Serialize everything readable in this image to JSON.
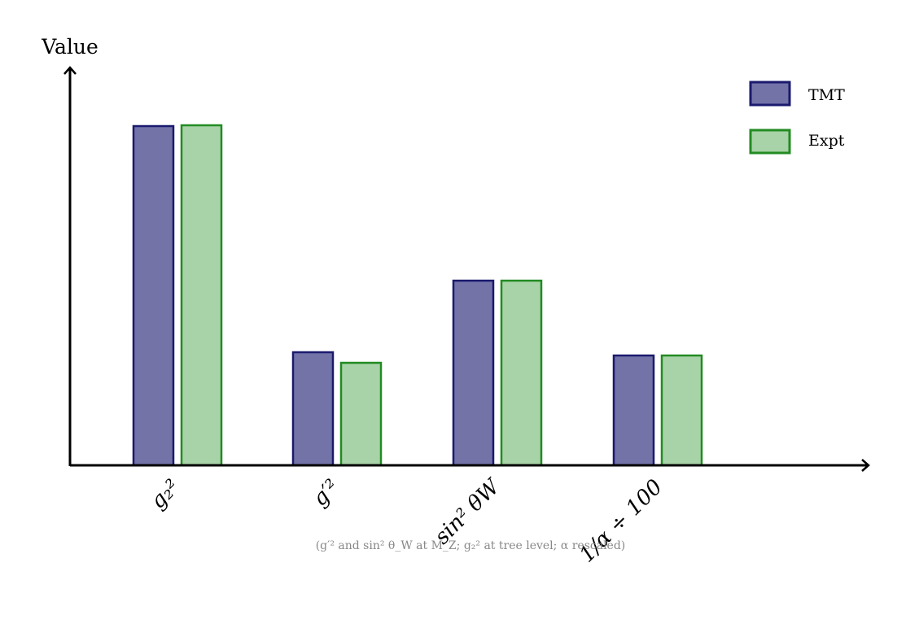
{
  "chart_data": {
    "type": "bar",
    "title": "",
    "xlabel": "",
    "ylabel": "Value",
    "categories": [
      "g_2^2",
      "g'^2",
      "sin^2 θ_W",
      "1/α ÷ 100"
    ],
    "category_display": [
      "g₂²",
      "g′²",
      "sin² θW",
      "1/α ÷ 100"
    ],
    "series": [
      {
        "name": "TMT",
        "values": [
          0.417,
          0.139,
          0.227,
          0.135
        ],
        "fill": "#7373a8",
        "stroke": "#1a1a6e"
      },
      {
        "name": "Expt",
        "values": [
          0.418,
          0.126,
          0.227,
          0.135
        ],
        "fill": "#a8d3a8",
        "stroke": "#228b22"
      }
    ],
    "ylim": [
      0,
      0.49
    ],
    "grid": false,
    "y_ticks": false,
    "legend_position": "top-right",
    "annotation": "(g′² and sin² θW at MZ; g₂² at tree level; α rescaled)"
  },
  "axis": {
    "ylabel": "Value"
  },
  "legend": [
    {
      "label": "TMT"
    },
    {
      "label": "Expt"
    }
  ],
  "note": "(g′² and sin² θ_W at M_Z; g₂² at tree level; α rescaled)"
}
